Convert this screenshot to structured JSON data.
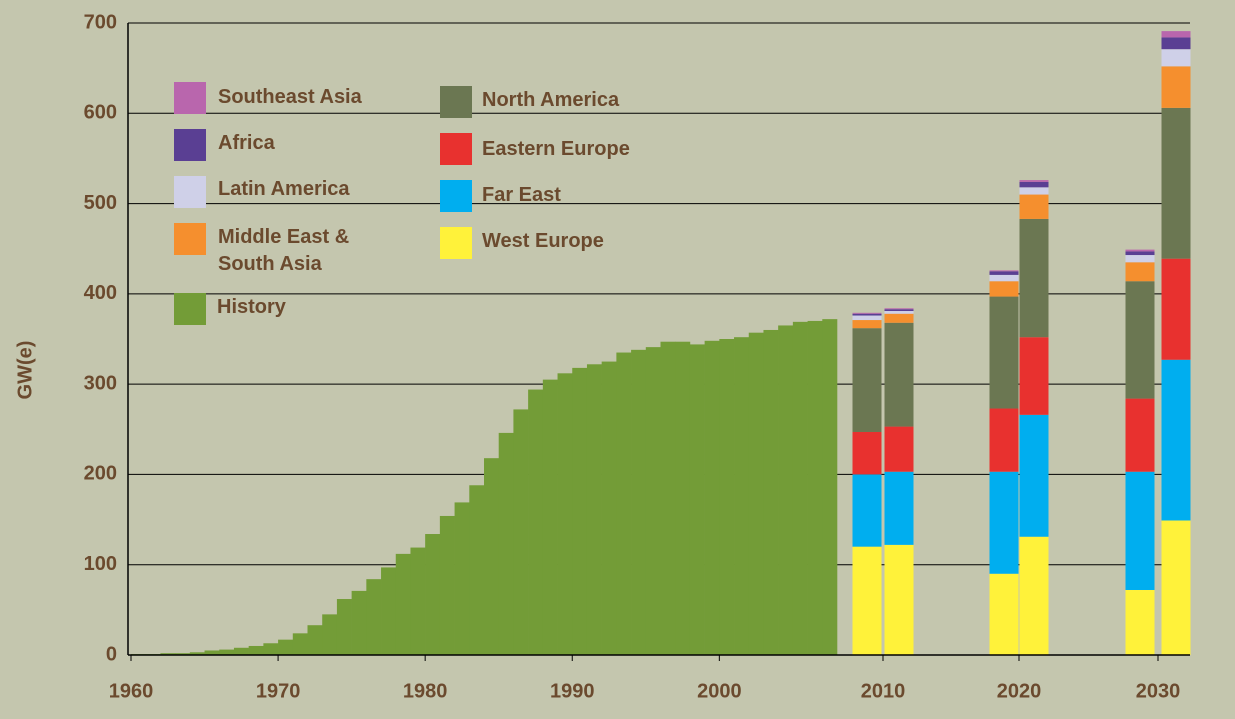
{
  "chart_data": [
    {
      "type": "bar",
      "ylabel": "GW(e)",
      "x": [
        1960,
        1961,
        1962,
        1963,
        1964,
        1965,
        1966,
        1967,
        1968,
        1969,
        1970,
        1971,
        1972,
        1973,
        1974,
        1975,
        1976,
        1977,
        1978,
        1979,
        1980,
        1981,
        1982,
        1983,
        1984,
        1985,
        1986,
        1987,
        1988,
        1989,
        1990,
        1991,
        1992,
        1993,
        1994,
        1995,
        1996,
        1997,
        1998,
        1999,
        2000,
        2001,
        2002,
        2003,
        2004,
        2005,
        2006,
        2007
      ],
      "series": [
        {
          "name": "History",
          "color": "#739c37",
          "values": [
            1,
            1,
            2,
            2,
            3,
            5,
            6,
            8,
            10,
            13,
            17,
            24,
            33,
            45,
            62,
            71,
            84,
            97,
            112,
            119,
            134,
            154,
            169,
            188,
            218,
            246,
            272,
            294,
            305,
            312,
            318,
            322,
            325,
            335,
            338,
            341,
            347,
            347,
            344,
            348,
            350,
            352,
            357,
            360,
            365,
            369,
            370,
            372
          ]
        }
      ],
      "xlim": [
        1960,
        2008
      ],
      "xticks": [
        1960,
        1970,
        1980,
        1990,
        2000
      ],
      "ylim": [
        0,
        700
      ],
      "yticks": [
        0,
        100,
        200,
        300,
        400,
        500,
        600,
        700
      ],
      "grid": true
    },
    {
      "type": "stacked_bar",
      "categories": [
        "2010",
        null,
        "2020",
        null,
        "2030",
        null
      ],
      "ylim": [
        0,
        700
      ],
      "series": [
        {
          "name": "West Europe",
          "color": "#fff23a",
          "values": [
            120,
            122,
            90,
            131,
            72,
            149
          ]
        },
        {
          "name": "Far East",
          "color": "#00aeef",
          "values": [
            80,
            81,
            113,
            135,
            131,
            178
          ]
        },
        {
          "name": "Eastern Europe",
          "color": "#e8312f",
          "values": [
            47,
            50,
            70,
            86,
            81,
            112
          ]
        },
        {
          "name": "North America",
          "color": "#6b7752",
          "values": [
            115,
            115,
            124,
            131,
            130,
            167
          ]
        },
        {
          "name": "Middle East & South Asia",
          "color": "#f58f2e",
          "values": [
            9,
            10,
            17,
            27,
            21,
            46
          ]
        },
        {
          "name": "Latin America",
          "color": "#cfd0e8",
          "values": [
            5,
            3,
            7,
            8,
            8,
            19
          ]
        },
        {
          "name": "Africa",
          "color": "#5a3f93",
          "values": [
            2,
            2,
            4,
            6,
            4,
            13
          ]
        },
        {
          "name": "Southeast Asia",
          "color": "#b966ad",
          "values": [
            1,
            1,
            1,
            2,
            2,
            7
          ]
        }
      ]
    }
  ]
}
